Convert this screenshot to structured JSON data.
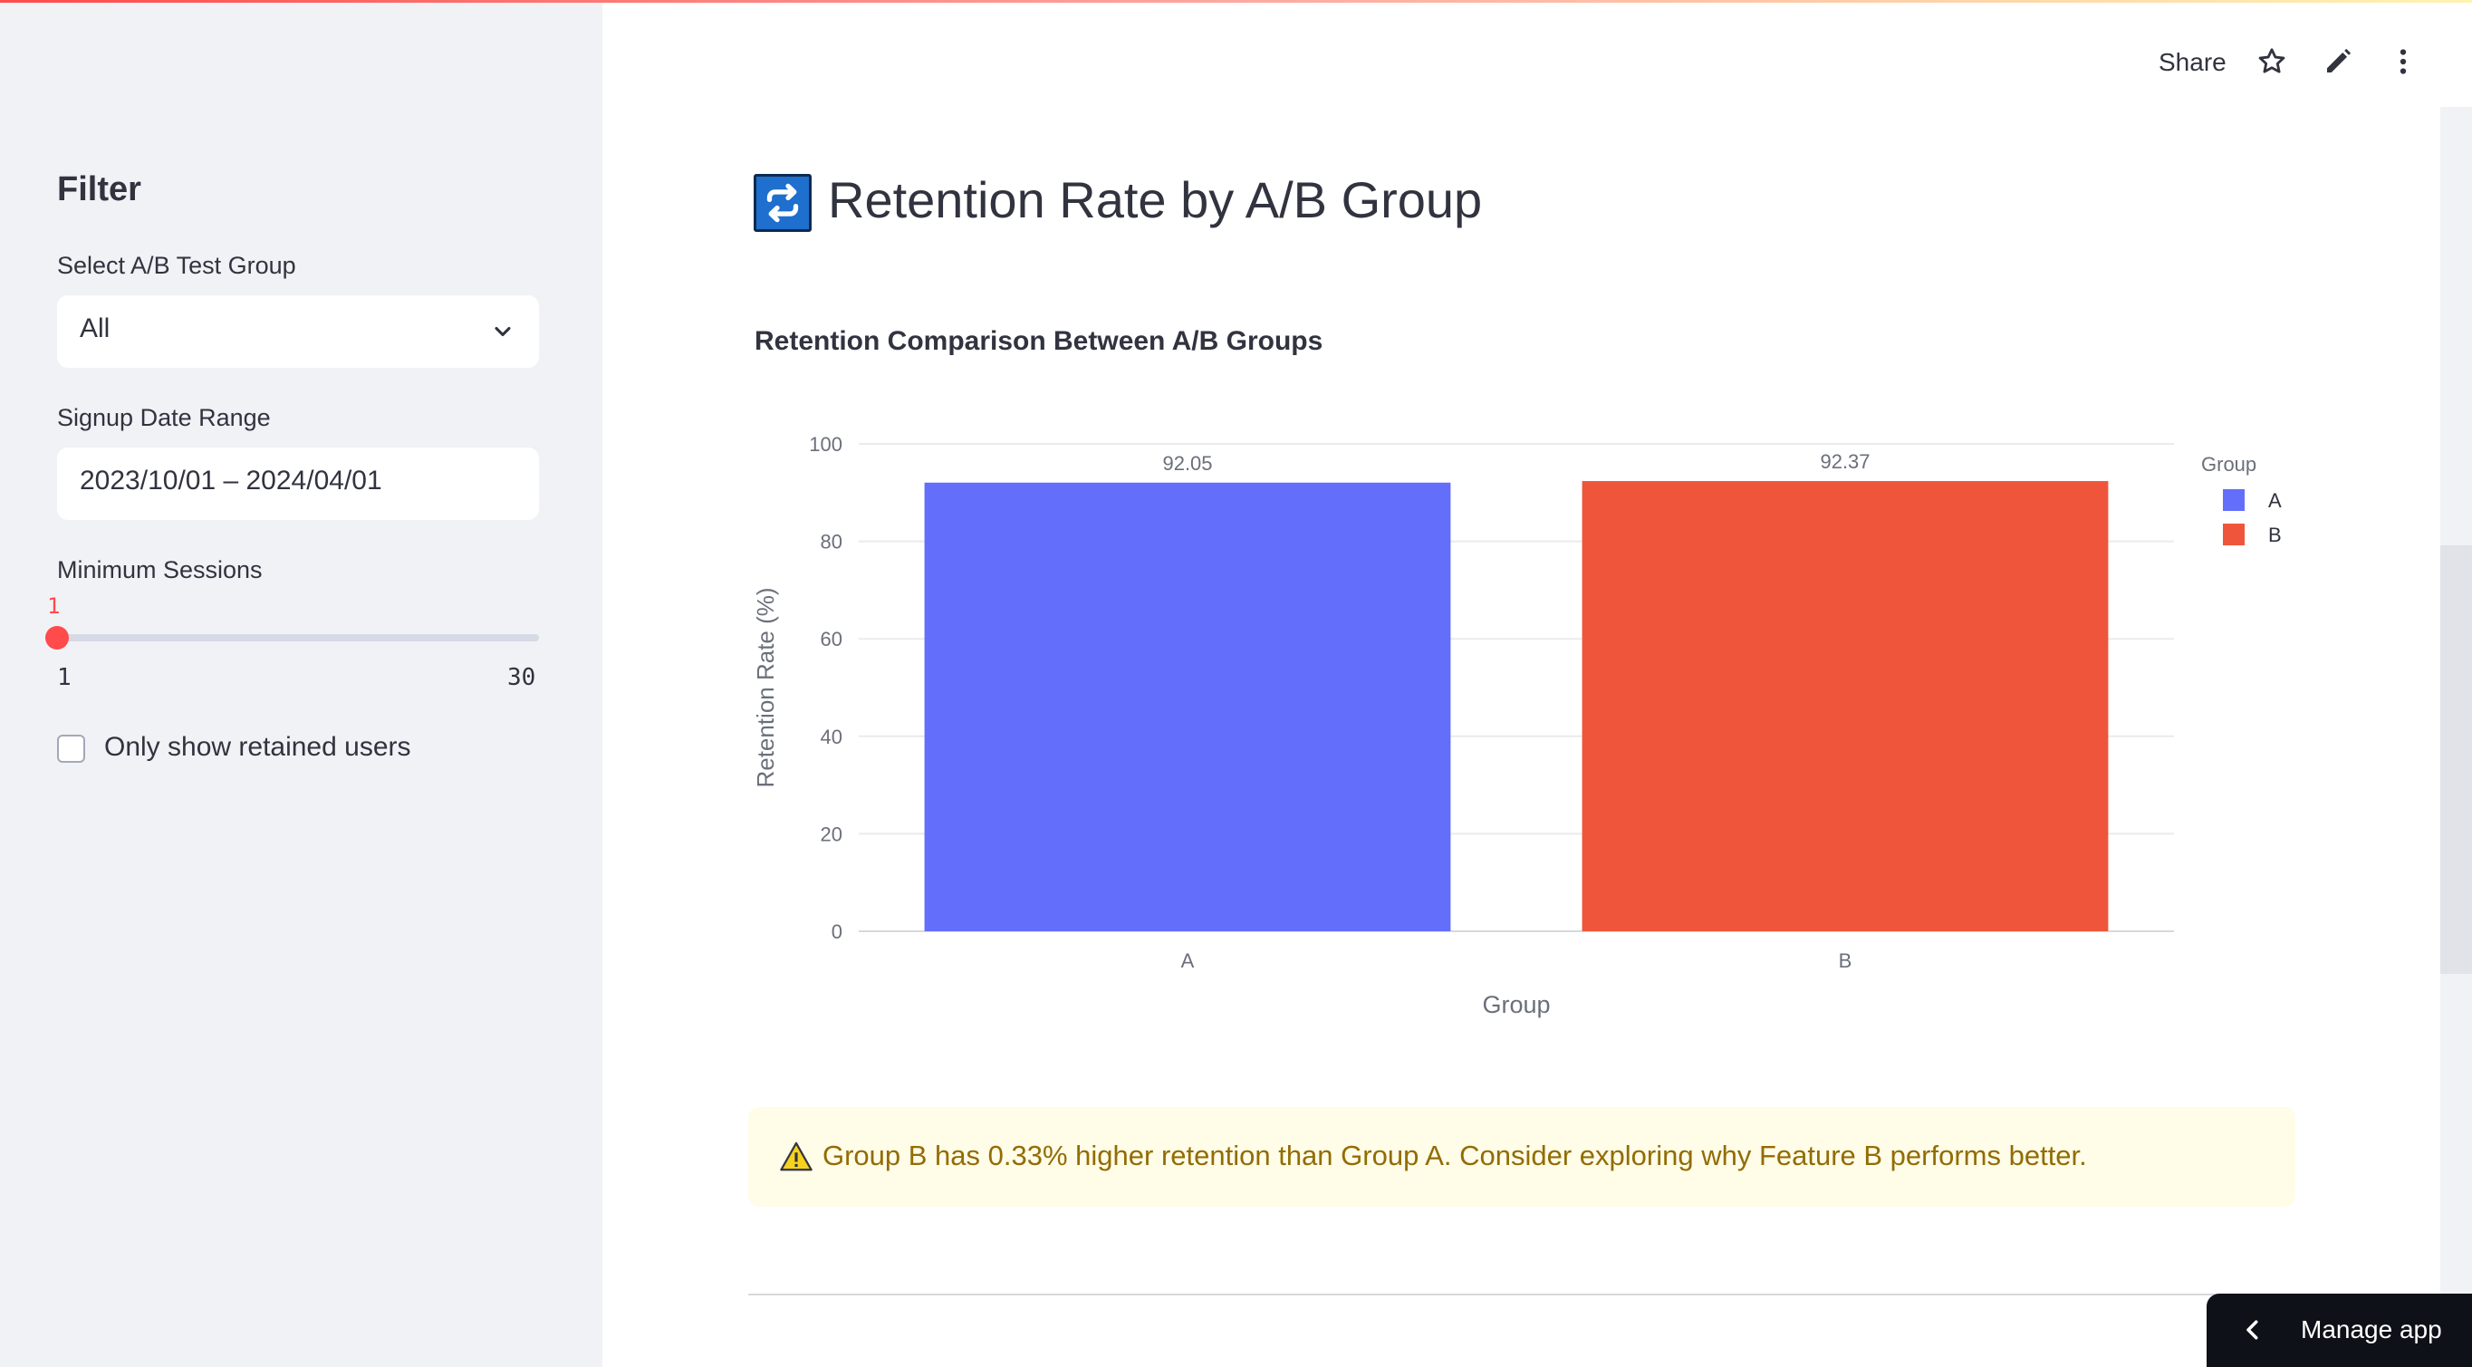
{
  "sidebar": {
    "title": "Filter",
    "group_select": {
      "label": "Select A/B Test Group",
      "value": "All"
    },
    "date_range": {
      "label": "Signup Date Range",
      "value": "2023/10/01 – 2024/04/01"
    },
    "min_sessions": {
      "label": "Minimum Sessions",
      "value": "1",
      "min": "1",
      "max": "30"
    },
    "retained_checkbox": {
      "label": "Only show retained users",
      "checked": false
    }
  },
  "toolbar": {
    "share_label": "Share",
    "icons": [
      "star-icon",
      "edit-icon",
      "more-vert-icon"
    ]
  },
  "main": {
    "title": "Retention Rate by A/B Group",
    "title_icon": "repeat-icon",
    "chart_heading": "Retention Comparison Between A/B Groups",
    "alert": {
      "icon": "warning-icon",
      "text": "Group B has 0.33% higher retention than Group A. Consider exploring why Feature B performs better."
    }
  },
  "manage_app": {
    "label": "Manage app"
  },
  "colors": {
    "accent": "#ff4b4b",
    "bar_a": "#636efa",
    "bar_b": "#ef553b",
    "alert_bg": "#fffce7",
    "alert_text": "#926c05"
  },
  "chart_data": {
    "type": "bar",
    "categories": [
      "A",
      "B"
    ],
    "values": [
      92.05,
      92.37
    ],
    "data_labels": [
      "92.05",
      "92.37"
    ],
    "xlabel": "Group",
    "ylabel": "Retention Rate (%)",
    "ylim": [
      0,
      100
    ],
    "yticks": [
      0,
      20,
      40,
      60,
      80,
      100
    ],
    "legend": {
      "title": "Group",
      "entries": [
        "A",
        "B"
      ],
      "position": "top-right"
    },
    "grid": true
  }
}
